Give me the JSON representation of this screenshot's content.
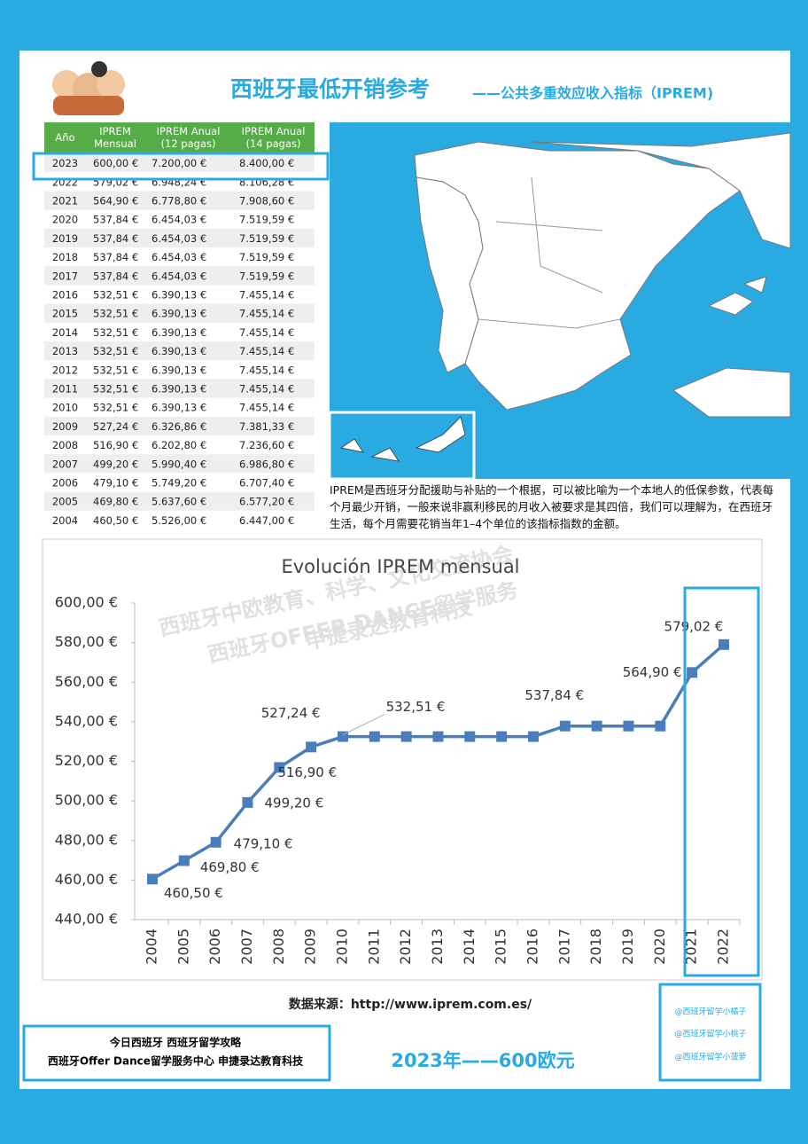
{
  "header": {
    "title": "西班牙最低开销参考",
    "subtitle": "——公共多重效应收入指标（IPREM)"
  },
  "table": {
    "headers": [
      "Año",
      "IPREM Mensual",
      "IPREM Anual (12 pagas)",
      "IPREM Anual (14 pagas)"
    ],
    "rows": [
      [
        "2023",
        "600,00 €",
        "7.200,00 €",
        "8.400,00 €"
      ],
      [
        "2022",
        "579,02 €",
        "6.948,24 €",
        "8.106,28 €"
      ],
      [
        "2021",
        "564,90 €",
        "6.778,80 €",
        "7.908,60 €"
      ],
      [
        "2020",
        "537,84 €",
        "6.454,03 €",
        "7.519,59 €"
      ],
      [
        "2019",
        "537,84 €",
        "6.454,03 €",
        "7.519,59 €"
      ],
      [
        "2018",
        "537,84 €",
        "6.454,03 €",
        "7.519,59 €"
      ],
      [
        "2017",
        "537,84 €",
        "6.454,03 €",
        "7.519,59 €"
      ],
      [
        "2016",
        "532,51 €",
        "6.390,13 €",
        "7.455,14 €"
      ],
      [
        "2015",
        "532,51 €",
        "6.390,13 €",
        "7.455,14 €"
      ],
      [
        "2014",
        "532,51 €",
        "6.390,13 €",
        "7.455,14 €"
      ],
      [
        "2013",
        "532,51 €",
        "6.390,13 €",
        "7.455,14 €"
      ],
      [
        "2012",
        "532,51 €",
        "6.390,13 €",
        "7.455,14 €"
      ],
      [
        "2011",
        "532,51 €",
        "6.390,13 €",
        "7.455,14 €"
      ],
      [
        "2010",
        "532,51 €",
        "6.390,13 €",
        "7.455,14 €"
      ],
      [
        "2009",
        "527,24 €",
        "6.326,86 €",
        "7.381,33 €"
      ],
      [
        "2008",
        "516,90 €",
        "6.202,80 €",
        "7.236,60 €"
      ],
      [
        "2007",
        "499,20 €",
        "5.990,40 €",
        "6.986,80 €"
      ],
      [
        "2006",
        "479,10 €",
        "5.749,20 €",
        "6.707,40 €"
      ],
      [
        "2005",
        "469,80 €",
        "5.637,60 €",
        "6.577,20 €"
      ],
      [
        "2004",
        "460,50 €",
        "5.526,00 €",
        "6.447,00 €"
      ]
    ]
  },
  "description": "IPREM是西班牙分配援助与补贴的一个根据，可以被比喻为一个本地人的低保参数，代表每个月最少开销，一般来说非赢利移民的月收入被要求是其四倍，我们可以理解为，在西班牙生活，每个月需要花销当年1–4个单位的该指标指数的金额。",
  "chart_data": {
    "type": "line",
    "title": "Evolución IPREM mensual",
    "categories": [
      "2004",
      "2005",
      "2006",
      "2007",
      "2008",
      "2009",
      "2010",
      "2011",
      "2012",
      "2013",
      "2014",
      "2015",
      "2016",
      "2017",
      "2018",
      "2019",
      "2020",
      "2021",
      "2022"
    ],
    "series": [
      {
        "name": "IPREM mensual",
        "color": "#4a7ebb",
        "values": [
          460.5,
          469.8,
          479.1,
          499.2,
          516.9,
          527.24,
          532.51,
          532.51,
          532.51,
          532.51,
          532.51,
          532.51,
          532.51,
          537.84,
          537.84,
          537.84,
          537.84,
          564.9,
          579.02
        ],
        "value_labels": [
          "460,50 €",
          "469,80 €",
          "479,10 €",
          "499,20 €",
          "516,90 €",
          "527,24 €",
          "532,51 €",
          null,
          null,
          null,
          null,
          null,
          null,
          "537,84 €",
          null,
          null,
          null,
          "564,90 €",
          "579,02 €"
        ]
      }
    ],
    "ylim": [
      440,
      600
    ],
    "yticks": [
      {
        "value": 440,
        "label": "440,00 €"
      },
      {
        "value": 460,
        "label": "460,00 €"
      },
      {
        "value": 480,
        "label": "480,00 €"
      },
      {
        "value": 500,
        "label": "500,00 €"
      },
      {
        "value": 520,
        "label": "520,00 €"
      },
      {
        "value": 540,
        "label": "540,00 €"
      },
      {
        "value": 560,
        "label": "560,00 €"
      },
      {
        "value": 580,
        "label": "580,00 €"
      },
      {
        "value": 600,
        "label": "600,00 €"
      }
    ]
  },
  "watermark": [
    "西班牙中欧教育、科学、文化交流协会",
    "西班牙OFFER DANCE留学服务",
    "申捷录达教育科技"
  ],
  "source": "数据来源：http://www.iprem.com.es/",
  "footer": {
    "lines": [
      "今日西班牙  西班牙留学攻略",
      "西班牙Offer Dance留学服务中心  申捷录达教育科技"
    ],
    "slogan": "2023年——600欧元",
    "handles": [
      "@西班牙留学小橘子",
      "@西班牙留学小桃子",
      "@西班牙留学小菠萝"
    ]
  }
}
